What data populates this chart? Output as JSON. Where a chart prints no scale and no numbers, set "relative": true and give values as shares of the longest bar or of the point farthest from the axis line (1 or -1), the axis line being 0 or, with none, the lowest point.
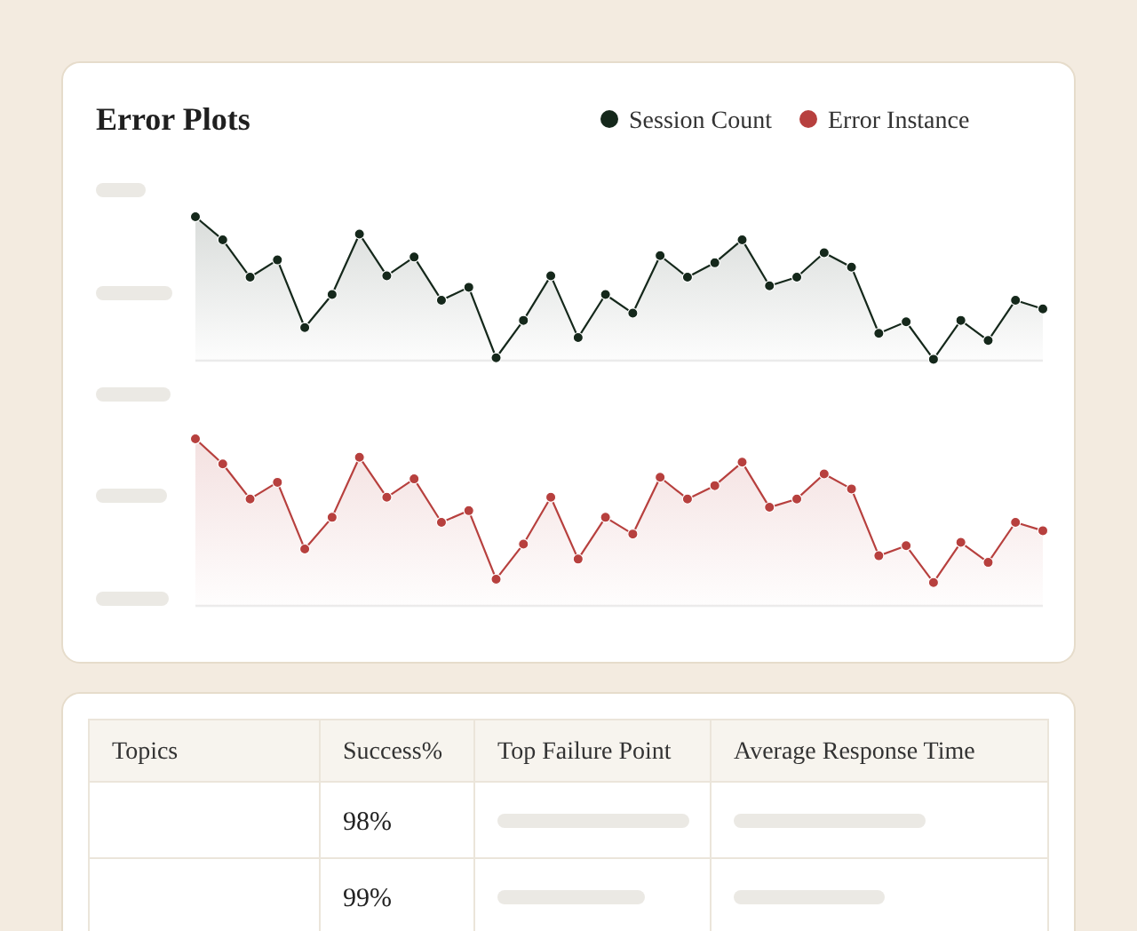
{
  "chart_data": [
    {
      "type": "area",
      "title": "Error Plots",
      "relative": true,
      "legend": "top right",
      "marker": "circle",
      "line_style": "solid",
      "categories": [
        null,
        null,
        null,
        null,
        null,
        null,
        null,
        null,
        null,
        null,
        null,
        null,
        null,
        null,
        null,
        null,
        null,
        null,
        null,
        null,
        null,
        null,
        null,
        null,
        null,
        null,
        null,
        null,
        null,
        null,
        null,
        null
      ],
      "series": [
        {
          "name": "Session Count",
          "color": "#15281b",
          "values": [
            1.0,
            0.84,
            0.58,
            0.7,
            0.23,
            0.46,
            0.88,
            0.59,
            0.72,
            0.42,
            0.51,
            0.02,
            0.28,
            0.59,
            0.16,
            0.46,
            0.33,
            0.73,
            0.58,
            0.68,
            0.84,
            0.52,
            0.58,
            0.75,
            0.65,
            0.19,
            0.27,
            0.01,
            0.28,
            0.14,
            0.42,
            0.36
          ]
        }
      ]
    },
    {
      "type": "area",
      "relative": true,
      "legend": "top right",
      "marker": "circle",
      "line_style": "solid",
      "categories": [
        null,
        null,
        null,
        null,
        null,
        null,
        null,
        null,
        null,
        null,
        null,
        null,
        null,
        null,
        null,
        null,
        null,
        null,
        null,
        null,
        null,
        null,
        null,
        null,
        null,
        null,
        null,
        null,
        null,
        null,
        null,
        null
      ],
      "series": [
        {
          "name": "Error Instance",
          "color": "#b7403e",
          "values": [
            1.0,
            0.85,
            0.64,
            0.74,
            0.34,
            0.53,
            0.89,
            0.65,
            0.76,
            0.5,
            0.57,
            0.16,
            0.37,
            0.65,
            0.28,
            0.53,
            0.43,
            0.77,
            0.64,
            0.72,
            0.86,
            0.59,
            0.64,
            0.79,
            0.7,
            0.3,
            0.36,
            0.14,
            0.38,
            0.26,
            0.5,
            0.45
          ]
        }
      ]
    },
    {
      "type": "other",
      "annotations": [
        "Topics",
        "Success%",
        "Top Failure Point",
        "Average Response Time",
        "98%",
        "99%"
      ]
    }
  ]
}
